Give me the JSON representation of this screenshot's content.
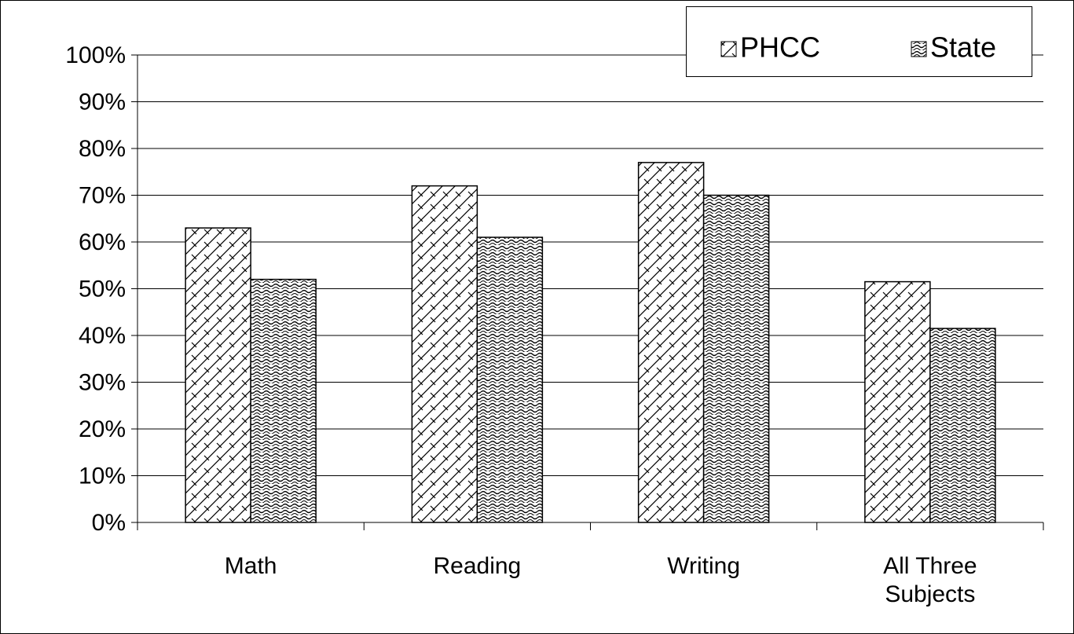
{
  "chart_data": {
    "type": "bar",
    "categories": [
      "Math",
      "Reading",
      "Writing",
      "All Three Subjects"
    ],
    "series": [
      {
        "name": "PHCC",
        "values": [
          63,
          72,
          77,
          51.5
        ]
      },
      {
        "name": "State",
        "values": [
          52,
          61,
          70,
          41.5
        ]
      }
    ],
    "ylim": [
      0,
      100
    ],
    "yticks": [
      {
        "value": 0,
        "label": "0%"
      },
      {
        "value": 10,
        "label": "10%"
      },
      {
        "value": 20,
        "label": "20%"
      },
      {
        "value": 30,
        "label": "30%"
      },
      {
        "value": 40,
        "label": "40%"
      },
      {
        "value": 50,
        "label": "50%"
      },
      {
        "value": 60,
        "label": "60%"
      },
      {
        "value": 70,
        "label": "70%"
      },
      {
        "value": 80,
        "label": "80%"
      },
      {
        "value": 90,
        "label": "90%"
      },
      {
        "value": 100,
        "label": "100%"
      }
    ],
    "grid": true,
    "legend": "upper right"
  }
}
